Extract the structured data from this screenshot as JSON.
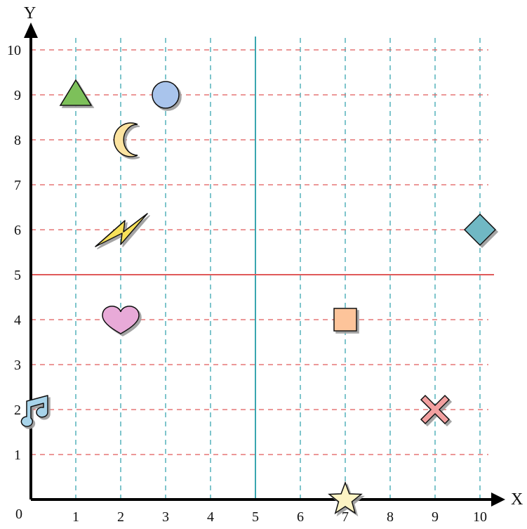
{
  "chart_data": {
    "type": "scatter",
    "title": "",
    "xlabel": "X",
    "ylabel": "Y",
    "origin_label": "0",
    "xlim": [
      0,
      10
    ],
    "ylim": [
      0,
      10
    ],
    "x_ticks": [
      "1",
      "2",
      "3",
      "4",
      "5",
      "6",
      "7",
      "8",
      "9",
      "10"
    ],
    "y_ticks": [
      "1",
      "2",
      "3",
      "4",
      "5",
      "6",
      "7",
      "8",
      "9",
      "10"
    ],
    "grid": true,
    "reference_lines": [
      {
        "axis": "x",
        "value": 5,
        "color": "#3aa6b0"
      },
      {
        "axis": "y",
        "value": 5,
        "color": "#e05a5a"
      }
    ],
    "colors": {
      "vertical_grid": "#3aa6b0",
      "horizontal_grid": "#e05a5a",
      "axis": "#000000"
    },
    "points": [
      {
        "shape": "triangle",
        "x": 1,
        "y": 9,
        "color": "#7dc05a"
      },
      {
        "shape": "circle",
        "x": 3,
        "y": 9,
        "color": "#a9c4ec"
      },
      {
        "shape": "crescent-moon",
        "x": 2,
        "y": 8,
        "color": "#fbe3a0"
      },
      {
        "shape": "lightning-bolt",
        "x": 2,
        "y": 6,
        "color": "#f7e15a"
      },
      {
        "shape": "diamond",
        "x": 10,
        "y": 6,
        "color": "#6fb8c4"
      },
      {
        "shape": "heart",
        "x": 2,
        "y": 4,
        "color": "#e8aad8"
      },
      {
        "shape": "square",
        "x": 7,
        "y": 4,
        "color": "#fdc49a"
      },
      {
        "shape": "music-note",
        "x": 0,
        "y": 2,
        "color": "#a8d4ea"
      },
      {
        "shape": "x-cross",
        "x": 9,
        "y": 2,
        "color": "#f2a0a0"
      },
      {
        "shape": "star",
        "x": 7,
        "y": 0,
        "color": "#fdf4c4"
      }
    ]
  }
}
